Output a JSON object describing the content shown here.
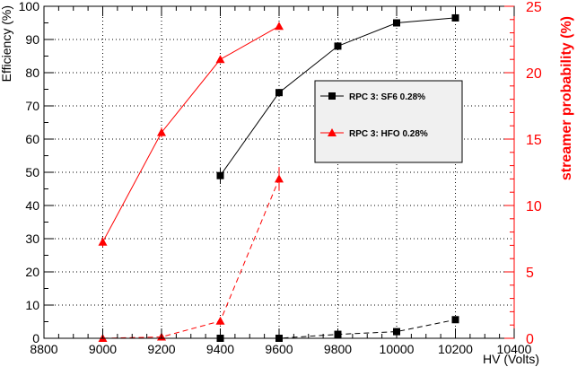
{
  "chart_data": {
    "type": "line",
    "title": "",
    "xlabel": "HV (Volts)",
    "ylabel_left": "Efficiency (%)",
    "ylabel_right": "streamer probability (%)",
    "xlim": [
      8800,
      10400
    ],
    "ylim_left": [
      0,
      100
    ],
    "ylim_right": [
      0,
      25
    ],
    "x_ticks": [
      "8800",
      "9000",
      "9200",
      "9400",
      "9600",
      "9800",
      "10000",
      "10200",
      "10400"
    ],
    "y_ticks_left": [
      "0",
      "10",
      "20",
      "30",
      "40",
      "50",
      "60",
      "70",
      "80",
      "90",
      "100"
    ],
    "y_ticks_right": [
      "0",
      "5",
      "10",
      "15",
      "20",
      "25"
    ],
    "grid": true,
    "legend_position": "upper-right",
    "colors": {
      "black": "#000000",
      "red": "#ff0000"
    },
    "series": [
      {
        "name": "RPC 3: SF6 0.28%",
        "metric": "efficiency",
        "axis": "left",
        "color": "#000000",
        "marker": "square",
        "linestyle": "solid",
        "x": [
          9400,
          9600,
          9800,
          10000,
          10200
        ],
        "y": [
          49,
          74,
          88,
          95,
          96.5
        ],
        "yerr": [
          2.5,
          1.0,
          0.8,
          0.6,
          0.5
        ]
      },
      {
        "name": "RPC 3: HFO 0.28%",
        "metric": "efficiency",
        "axis": "left",
        "color": "#ff0000",
        "marker": "triangle",
        "linestyle": "solid",
        "x": [
          9000,
          9200,
          9400,
          9600
        ],
        "y": [
          29,
          62,
          84,
          94
        ],
        "yerr": [
          1.5,
          1.5,
          0.8,
          0.5
        ]
      },
      {
        "metric": "streamer",
        "axis": "right",
        "color": "#000000",
        "marker": "square",
        "linestyle": "dashed",
        "x": [
          9400,
          9600,
          9800,
          10000,
          10200
        ],
        "y": [
          0,
          0,
          0.3,
          0.5,
          1.4
        ],
        "yerr": [
          0,
          0,
          0.1,
          0.15,
          0.25
        ]
      },
      {
        "metric": "streamer",
        "axis": "right",
        "color": "#ff0000",
        "marker": "triangle",
        "linestyle": "dashed",
        "x": [
          9000,
          9200,
          9400,
          9600
        ],
        "y": [
          0,
          0.1,
          1.3,
          12
        ],
        "yerr": [
          0,
          0.05,
          0.3,
          0.9
        ]
      }
    ]
  }
}
